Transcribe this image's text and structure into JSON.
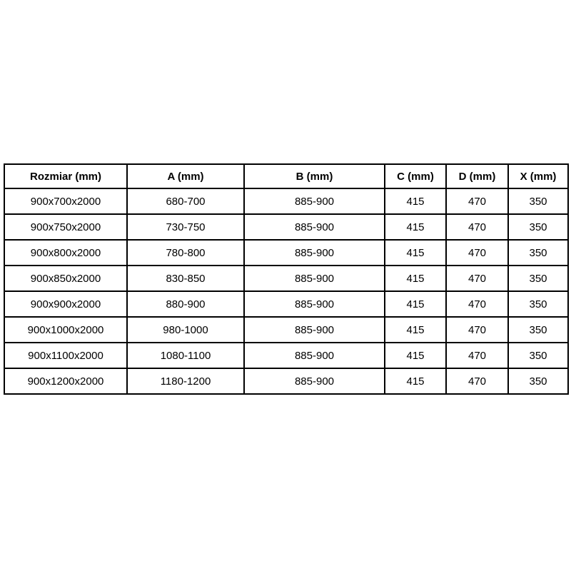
{
  "colors": {
    "background": "#ffffff",
    "border": "#000000",
    "text": "#000000"
  },
  "table": {
    "columns": [
      "Rozmiar (mm)",
      "A (mm)",
      "B (mm)",
      "C (mm)",
      "D (mm)",
      "X (mm)"
    ],
    "rows": [
      [
        "900x700x2000",
        "680-700",
        "885-900",
        "415",
        "470",
        "350"
      ],
      [
        "900x750x2000",
        "730-750",
        "885-900",
        "415",
        "470",
        "350"
      ],
      [
        "900x800x2000",
        "780-800",
        "885-900",
        "415",
        "470",
        "350"
      ],
      [
        "900x850x2000",
        "830-850",
        "885-900",
        "415",
        "470",
        "350"
      ],
      [
        "900x900x2000",
        "880-900",
        "885-900",
        "415",
        "470",
        "350"
      ],
      [
        "900x1000x2000",
        "980-1000",
        "885-900",
        "415",
        "470",
        "350"
      ],
      [
        "900x1100x2000",
        "1080-1100",
        "885-900",
        "415",
        "470",
        "350"
      ],
      [
        "900x1200x2000",
        "1180-1200",
        "885-900",
        "415",
        "470",
        "350"
      ]
    ]
  }
}
